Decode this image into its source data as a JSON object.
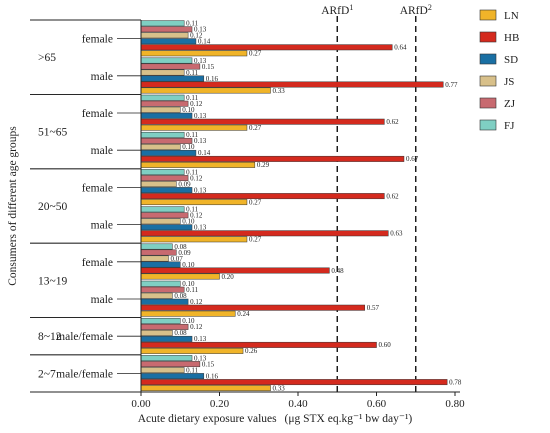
{
  "chart_data": {
    "type": "bar",
    "orientation": "horizontal",
    "xlabel": "Acute dietary exposure values",
    "xlabel_unit": "(μg STX eq.kg⁻¹ bw day⁻¹)",
    "ylabel": "Consumers of different age groups",
    "xlim": [
      0,
      0.8
    ],
    "xticks": [
      "0.00",
      "0.20",
      "0.40",
      "0.60",
      "0.80"
    ],
    "reference_lines": [
      {
        "label": "ARfD",
        "sup": "1",
        "x": 0.5
      },
      {
        "label": "ARfD",
        "sup": "2",
        "x": 0.7
      }
    ],
    "series": [
      {
        "name": "LN",
        "color": "#f0b429"
      },
      {
        "name": "HB",
        "color": "#d42a1e"
      },
      {
        "name": "SD",
        "color": "#1a6fa3"
      },
      {
        "name": "JS",
        "color": "#d8c08a"
      },
      {
        "name": "ZJ",
        "color": "#c86a70"
      },
      {
        "name": "FJ",
        "color": "#7fcfc3"
      }
    ],
    "age_groups": [
      {
        "label": ">65",
        "subgroups": [
          {
            "label": "female",
            "bars": [
              {
                "series": "FJ",
                "value": 0.11,
                "label": "0.11"
              },
              {
                "series": "ZJ",
                "value": 0.13,
                "label": "0.13"
              },
              {
                "series": "JS",
                "value": 0.12,
                "label": "0.12"
              },
              {
                "series": "SD",
                "value": 0.14,
                "label": "0.14"
              },
              {
                "series": "HB",
                "value": 0.64,
                "label": "0.64"
              },
              {
                "series": "LN",
                "value": 0.27,
                "label": "0.27"
              }
            ]
          },
          {
            "label": "male",
            "bars": [
              {
                "series": "FJ",
                "value": 0.13,
                "label": "0.13"
              },
              {
                "series": "ZJ",
                "value": 0.15,
                "label": "0.15"
              },
              {
                "series": "JS",
                "value": 0.11,
                "label": "0.11"
              },
              {
                "series": "SD",
                "value": 0.16,
                "label": "0.16"
              },
              {
                "series": "HB",
                "value": 0.77,
                "label": "0.77"
              },
              {
                "series": "LN",
                "value": 0.33,
                "label": "0.33"
              }
            ]
          }
        ]
      },
      {
        "label": "51~65",
        "subgroups": [
          {
            "label": "female",
            "bars": [
              {
                "series": "FJ",
                "value": 0.11,
                "label": "0.11"
              },
              {
                "series": "ZJ",
                "value": 0.12,
                "label": "0.12"
              },
              {
                "series": "JS",
                "value": 0.1,
                "label": "0.10"
              },
              {
                "series": "SD",
                "value": 0.13,
                "label": "0.13"
              },
              {
                "series": "HB",
                "value": 0.62,
                "label": "0.62"
              },
              {
                "series": "LN",
                "value": 0.27,
                "label": "0.27"
              }
            ]
          },
          {
            "label": "male",
            "bars": [
              {
                "series": "FJ",
                "value": 0.11,
                "label": "0.11"
              },
              {
                "series": "ZJ",
                "value": 0.13,
                "label": "0.13"
              },
              {
                "series": "JS",
                "value": 0.1,
                "label": "0.10"
              },
              {
                "series": "SD",
                "value": 0.14,
                "label": "0.14"
              },
              {
                "series": "HB",
                "value": 0.67,
                "label": "0.67"
              },
              {
                "series": "LN",
                "value": 0.29,
                "label": "0.29"
              }
            ]
          }
        ]
      },
      {
        "label": "20~50",
        "subgroups": [
          {
            "label": "female",
            "bars": [
              {
                "series": "FJ",
                "value": 0.11,
                "label": "0.11"
              },
              {
                "series": "ZJ",
                "value": 0.12,
                "label": "0.12"
              },
              {
                "series": "JS",
                "value": 0.09,
                "label": "0.09"
              },
              {
                "series": "SD",
                "value": 0.13,
                "label": "0.13"
              },
              {
                "series": "HB",
                "value": 0.62,
                "label": "0.62"
              },
              {
                "series": "LN",
                "value": 0.27,
                "label": "0.27"
              }
            ]
          },
          {
            "label": "male",
            "bars": [
              {
                "series": "FJ",
                "value": 0.11,
                "label": "0.11"
              },
              {
                "series": "ZJ",
                "value": 0.12,
                "label": "0.12"
              },
              {
                "series": "JS",
                "value": 0.1,
                "label": "0.10"
              },
              {
                "series": "SD",
                "value": 0.13,
                "label": "0.13"
              },
              {
                "series": "HB",
                "value": 0.63,
                "label": "0.63"
              },
              {
                "series": "LN",
                "value": 0.27,
                "label": "0.27"
              }
            ]
          }
        ]
      },
      {
        "label": "13~19",
        "subgroups": [
          {
            "label": "female",
            "bars": [
              {
                "series": "FJ",
                "value": 0.08,
                "label": "0.08"
              },
              {
                "series": "ZJ",
                "value": 0.09,
                "label": "0.09"
              },
              {
                "series": "JS",
                "value": 0.07,
                "label": "0.07"
              },
              {
                "series": "SD",
                "value": 0.1,
                "label": "0.10"
              },
              {
                "series": "HB",
                "value": 0.48,
                "label": "0.48"
              },
              {
                "series": "LN",
                "value": 0.2,
                "label": "0.20"
              }
            ]
          },
          {
            "label": "male",
            "bars": [
              {
                "series": "FJ",
                "value": 0.1,
                "label": "0.10"
              },
              {
                "series": "ZJ",
                "value": 0.11,
                "label": "0.11"
              },
              {
                "series": "JS",
                "value": 0.08,
                "label": "0.08"
              },
              {
                "series": "SD",
                "value": 0.12,
                "label": "0.12"
              },
              {
                "series": "HB",
                "value": 0.57,
                "label": "0.57"
              },
              {
                "series": "LN",
                "value": 0.24,
                "label": "0.24"
              }
            ]
          }
        ]
      },
      {
        "label": "8~12",
        "subgroups": [
          {
            "label": "male/female",
            "bars": [
              {
                "series": "FJ",
                "value": 0.1,
                "label": "0.10"
              },
              {
                "series": "ZJ",
                "value": 0.12,
                "label": "0.12"
              },
              {
                "series": "JS",
                "value": 0.08,
                "label": "0.08"
              },
              {
                "series": "SD",
                "value": 0.13,
                "label": "0.13"
              },
              {
                "series": "HB",
                "value": 0.6,
                "label": "0.60"
              },
              {
                "series": "LN",
                "value": 0.26,
                "label": "0.26"
              }
            ]
          }
        ]
      },
      {
        "label": "2~7",
        "subgroups": [
          {
            "label": "male/female",
            "bars": [
              {
                "series": "FJ",
                "value": 0.13,
                "label": "0.13"
              },
              {
                "series": "ZJ",
                "value": 0.15,
                "label": "0.15"
              },
              {
                "series": "JS",
                "value": 0.11,
                "label": "0.11"
              },
              {
                "series": "SD",
                "value": 0.16,
                "label": "0.16"
              },
              {
                "series": "HB",
                "value": 0.78,
                "label": "0.78"
              },
              {
                "series": "LN",
                "value": 0.33,
                "label": "0.33"
              }
            ]
          }
        ]
      }
    ]
  }
}
